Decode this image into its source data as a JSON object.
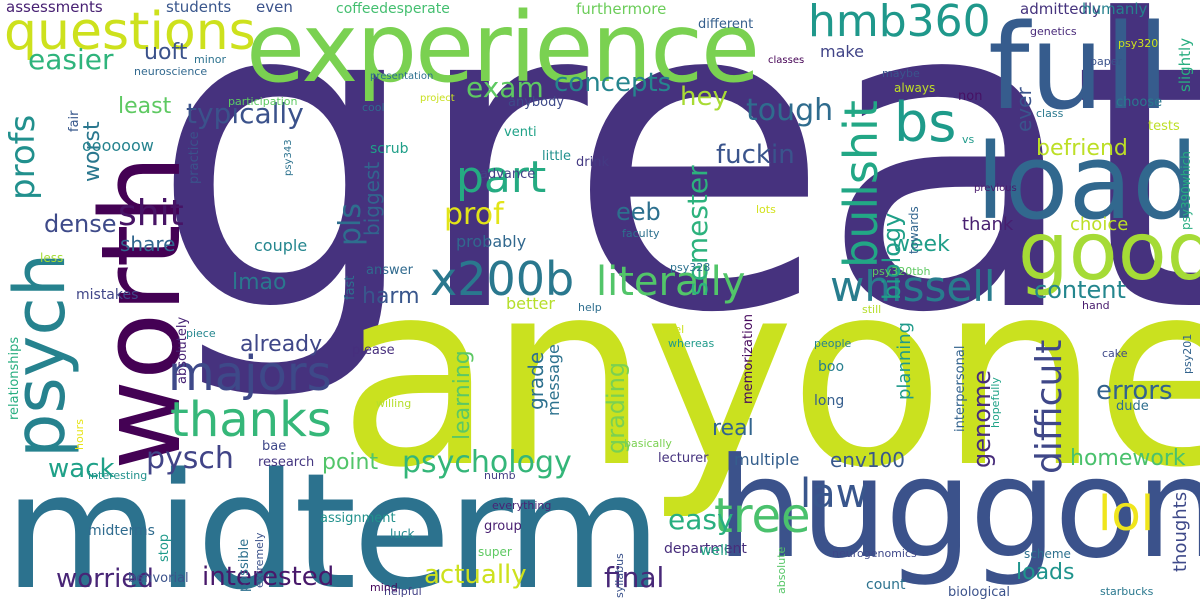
{
  "words": [
    {
      "text": "great",
      "color": "#46327e"
    },
    {
      "text": "anyone",
      "color": "#cae11f"
    },
    {
      "text": "midterm",
      "color": "#2c728e"
    },
    {
      "text": "experience",
      "color": "#7ad151"
    },
    {
      "text": "huggon",
      "color": "#3b528b"
    },
    {
      "text": "worth",
      "color": "#440154"
    },
    {
      "text": "full",
      "color": "#365c8d"
    },
    {
      "text": "load",
      "color": "#31688e"
    },
    {
      "text": "good",
      "color": "#a5db36"
    },
    {
      "text": "psych",
      "color": "#26828e"
    },
    {
      "text": "questions",
      "color": "#cde11d"
    },
    {
      "text": "hmb360",
      "color": "#1f988b"
    },
    {
      "text": "bs",
      "color": "#1e9b8a"
    },
    {
      "text": "majors",
      "color": "#3e4989"
    },
    {
      "text": "thanks",
      "color": "#35b779"
    },
    {
      "text": "bullshit",
      "color": "#22a785"
    },
    {
      "text": "whissell",
      "color": "#287d8e"
    },
    {
      "text": "x200b",
      "color": "#2a788e"
    },
    {
      "text": "part",
      "color": "#25ab82"
    },
    {
      "text": "tree",
      "color": "#4ac16d"
    },
    {
      "text": "literally",
      "color": "#52c569"
    },
    {
      "text": "lol",
      "color": "#efe51c"
    },
    {
      "text": "law",
      "color": "#39568c"
    },
    {
      "text": "shit",
      "color": "#471365"
    },
    {
      "text": "difficult",
      "color": "#3f4788"
    },
    {
      "text": "profs",
      "color": "#21908d"
    },
    {
      "text": "semester",
      "color": "#2db27d"
    },
    {
      "text": "prof",
      "color": "#e2e418"
    },
    {
      "text": "biology",
      "color": "#1f9f88"
    },
    {
      "text": "pls",
      "color": "#2e6e8e"
    },
    {
      "text": "tough",
      "color": "#2f6c8e"
    },
    {
      "text": "typically",
      "color": "#3b528b"
    },
    {
      "text": "easier",
      "color": "#2fb47c"
    },
    {
      "text": "concepts",
      "color": "#25858e"
    },
    {
      "text": "exam",
      "color": "#5ec962"
    },
    {
      "text": "hey",
      "color": "#a8db34"
    },
    {
      "text": "psychology",
      "color": "#34b679"
    },
    {
      "text": "pysch",
      "color": "#414487"
    },
    {
      "text": "easy",
      "color": "#29af7f"
    },
    {
      "text": "final",
      "color": "#482878"
    },
    {
      "text": "interested",
      "color": "#48186a"
    },
    {
      "text": "actually",
      "color": "#cde11d"
    },
    {
      "text": "worried",
      "color": "#482576"
    },
    {
      "text": "wack",
      "color": "#1fa188"
    },
    {
      "text": "fuckin",
      "color": "#3a548c"
    },
    {
      "text": "genome",
      "color": "#472c7a"
    },
    {
      "text": "homework",
      "color": "#4ac16d"
    },
    {
      "text": "content",
      "color": "#24868e"
    },
    {
      "text": "errors",
      "color": "#33638d"
    },
    {
      "text": "grading",
      "color": "#7ad151"
    },
    {
      "text": "learning",
      "color": "#5cc863"
    },
    {
      "text": "worst",
      "color": "#2a778e"
    },
    {
      "text": "biggest",
      "color": "#32648e"
    },
    {
      "text": "befriend",
      "color": "#bddf26"
    },
    {
      "text": "dense",
      "color": "#3e4a89"
    },
    {
      "text": "lmao",
      "color": "#2a778e"
    },
    {
      "text": "already",
      "color": "#3f4788"
    },
    {
      "text": "harm",
      "color": "#39568c"
    },
    {
      "text": "eeb",
      "color": "#2d708e"
    },
    {
      "text": "week",
      "color": "#1f9e89"
    },
    {
      "text": "loads",
      "color": "#1f948c"
    },
    {
      "text": "point",
      "color": "#52c569"
    },
    {
      "text": "real",
      "color": "#32648e"
    },
    {
      "text": "ever",
      "color": "#3a548c"
    },
    {
      "text": "uoft",
      "color": "#3b528b"
    },
    {
      "text": "least",
      "color": "#5ec962"
    },
    {
      "text": "share",
      "color": "#31668e"
    },
    {
      "text": "env100",
      "color": "#38588c"
    },
    {
      "text": "grade",
      "color": "#2d708e"
    },
    {
      "text": "oooooow",
      "color": "#25838e"
    },
    {
      "text": "planning",
      "color": "#1f9a8a"
    },
    {
      "text": "thoughts",
      "color": "#3e4989"
    },
    {
      "text": "choice",
      "color": "#bddf26"
    },
    {
      "text": "thank",
      "color": "#481f70"
    },
    {
      "text": "probably",
      "color": "#31688e"
    },
    {
      "text": "couple",
      "color": "#24868e"
    },
    {
      "text": "multiple",
      "color": "#355f8d"
    },
    {
      "text": "make",
      "color": "#414487"
    },
    {
      "text": "message",
      "color": "#2c728e"
    },
    {
      "text": "mistakes",
      "color": "#404688"
    },
    {
      "text": "better",
      "color": "#b5de2b"
    },
    {
      "text": "assessments",
      "color": "#482173"
    },
    {
      "text": "students",
      "color": "#39568c"
    },
    {
      "text": "even",
      "color": "#3b528b"
    },
    {
      "text": "coffeedesperate",
      "color": "#44bf70"
    },
    {
      "text": "furthermore",
      "color": "#6ccd5a"
    },
    {
      "text": "admittedly",
      "color": "#45337d"
    },
    {
      "text": "humanly",
      "color": "#26818e"
    },
    {
      "text": "slightly",
      "color": "#28ae80"
    },
    {
      "text": "different",
      "color": "#355f8d"
    },
    {
      "text": "genetics",
      "color": "#482979"
    },
    {
      "text": "psy320",
      "color": "#cde11d"
    },
    {
      "text": "paper",
      "color": "#3b528b"
    },
    {
      "text": "choose",
      "color": "#2a788e"
    },
    {
      "text": "anybody",
      "color": "#3e4a89"
    },
    {
      "text": "non",
      "color": "#471164"
    },
    {
      "text": "cool",
      "color": "#306a8e"
    },
    {
      "text": "scrub",
      "color": "#1f9f88"
    },
    {
      "text": "drink",
      "color": "#443a83"
    },
    {
      "text": "little",
      "color": "#21908d"
    },
    {
      "text": "advance",
      "color": "#424186"
    },
    {
      "text": "venti",
      "color": "#1fa287"
    },
    {
      "text": "tests",
      "color": "#bddf26"
    },
    {
      "text": "psy390which",
      "color": "#27ad81"
    },
    {
      "text": "fair",
      "color": "#38588c"
    },
    {
      "text": "practice",
      "color": "#3b528b"
    },
    {
      "text": "absolutely",
      "color": "#482475"
    },
    {
      "text": "fast",
      "color": "#2e6f8e"
    },
    {
      "text": "answer",
      "color": "#306a8e"
    },
    {
      "text": "please",
      "color": "#472f7d"
    },
    {
      "text": "boo",
      "color": "#277f8e"
    },
    {
      "text": "long",
      "color": "#355e8d"
    },
    {
      "text": "dude",
      "color": "#2e6e8e"
    },
    {
      "text": "hand",
      "color": "#481c6e"
    },
    {
      "text": "cake",
      "color": "#3e4989"
    },
    {
      "text": "psy201",
      "color": "#33638d"
    },
    {
      "text": "relationships",
      "color": "#28ae80"
    },
    {
      "text": "hours",
      "color": "#e7e419"
    },
    {
      "text": "interesting",
      "color": "#21918c"
    },
    {
      "text": "research",
      "color": "#453781"
    },
    {
      "text": "bae",
      "color": "#3f4889"
    },
    {
      "text": "lecturer",
      "color": "#46337f"
    },
    {
      "text": "numb",
      "color": "#433e85"
    },
    {
      "text": "midterms",
      "color": "#2f6b8e"
    },
    {
      "text": "stop",
      "color": "#1f9a8a"
    },
    {
      "text": "possible",
      "color": "#2d708e"
    },
    {
      "text": "extremely",
      "color": "#3b528b"
    },
    {
      "text": "assignment",
      "color": "#21918c"
    },
    {
      "text": "luck",
      "color": "#23898e"
    },
    {
      "text": "everything",
      "color": "#482475"
    },
    {
      "text": "group",
      "color": "#481f70"
    },
    {
      "text": "super",
      "color": "#5ec962"
    },
    {
      "text": "syllabus",
      "color": "#3b528b"
    },
    {
      "text": "department",
      "color": "#472d7b"
    },
    {
      "text": "well",
      "color": "#22a785"
    },
    {
      "text": "absolute",
      "color": "#56c667"
    },
    {
      "text": "neurogenomics",
      "color": "#3f4889"
    },
    {
      "text": "count",
      "color": "#2c728e"
    },
    {
      "text": "scheme",
      "color": "#2d708e"
    },
    {
      "text": "biological",
      "color": "#3b528b"
    },
    {
      "text": "starbucks",
      "color": "#2a788e"
    },
    {
      "text": "behvorial",
      "color": "#3b528b"
    },
    {
      "text": "helpful",
      "color": "#424186"
    },
    {
      "text": "level",
      "color": "#cde11d"
    },
    {
      "text": "whereas",
      "color": "#1f9a8a"
    },
    {
      "text": "people",
      "color": "#26818e"
    },
    {
      "text": "still",
      "color": "#b5de2b"
    },
    {
      "text": "memorization",
      "color": "#46085c"
    },
    {
      "text": "hopefully",
      "color": "#1fa287"
    },
    {
      "text": "interpersonal",
      "color": "#33638d"
    },
    {
      "text": "basically",
      "color": "#7ad151"
    },
    {
      "text": "willing",
      "color": "#b5de2b"
    },
    {
      "text": "piece",
      "color": "#24868e"
    },
    {
      "text": "help",
      "color": "#2e6e8e"
    },
    {
      "text": "psy328",
      "color": "#2c728e"
    },
    {
      "text": "psy320tbh",
      "color": "#5ec962"
    },
    {
      "text": "faculty",
      "color": "#2d708e"
    },
    {
      "text": "lots",
      "color": "#d2e21b"
    },
    {
      "text": "towards",
      "color": "#32658e"
    },
    {
      "text": "previous",
      "color": "#481a6c"
    },
    {
      "text": "vs",
      "color": "#1f9a8a"
    },
    {
      "text": "class",
      "color": "#2a788e"
    },
    {
      "text": "always",
      "color": "#c0df25"
    },
    {
      "text": "maybe",
      "color": "#3a548c"
    },
    {
      "text": "classes",
      "color": "#440154"
    },
    {
      "text": "presentation",
      "color": "#2d708e"
    },
    {
      "text": "project",
      "color": "#c8e020"
    },
    {
      "text": "participation",
      "color": "#5ec962"
    },
    {
      "text": "neuroscience",
      "color": "#31688e"
    },
    {
      "text": "minor",
      "color": "#2c728e"
    },
    {
      "text": "mind",
      "color": "#46085c"
    },
    {
      "text": "psy343",
      "color": "#2c728e"
    },
    {
      "text": "less",
      "color": "#a5db36"
    },
    {
      "text": "whissel",
      "color": "#23898e"
    }
  ]
}
